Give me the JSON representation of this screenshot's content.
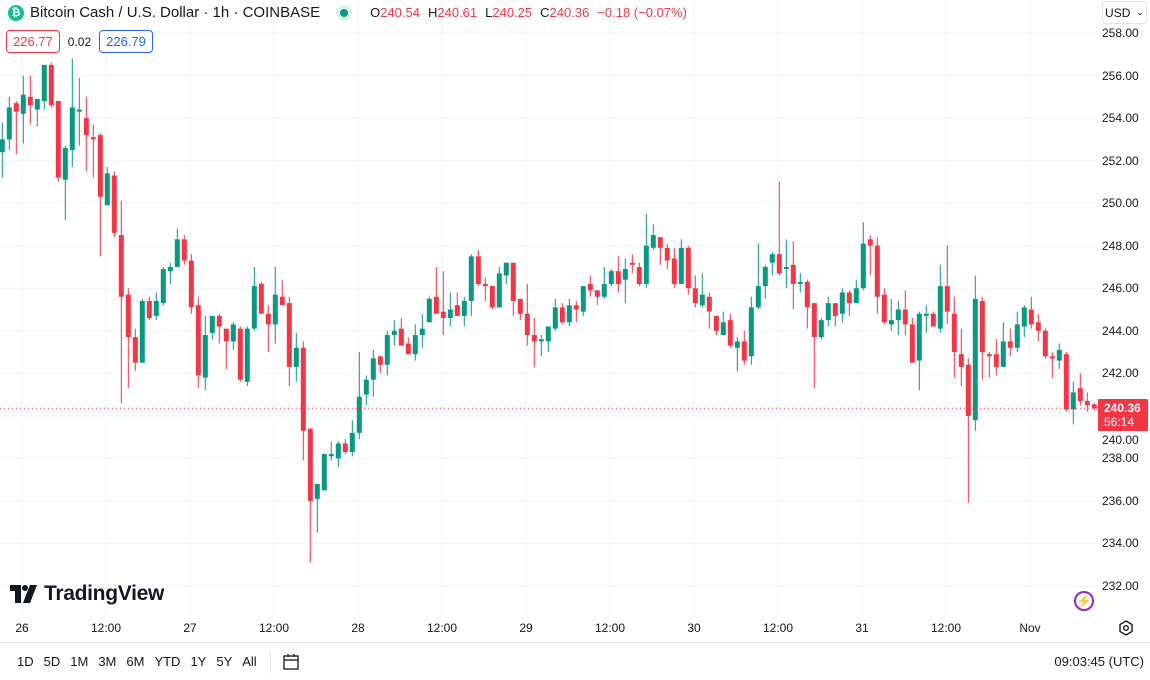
{
  "header": {
    "title": "Bitcoin Cash / U.S. Dollar · 1h · COINBASE",
    "coin_icon": "bitcoin-cash-icon",
    "ohlc": {
      "o_label": "O",
      "o": "240.54",
      "h_label": "H",
      "h": "240.61",
      "l_label": "L",
      "l": "240.25",
      "c_label": "C",
      "c": "240.36",
      "change": "−0.18 (−0.07%)"
    },
    "sell_price": "226.77",
    "spread": "0.02",
    "buy_price": "226.79"
  },
  "currency": "USD",
  "last_price": {
    "value": "240.36",
    "countdown": "56:14"
  },
  "logo_text": "TradingView",
  "colors": {
    "up": "#089981",
    "down": "#f23645",
    "grid": "#f0f3fa"
  },
  "time_labels": [
    "26",
    "12:00",
    "27",
    "12:00",
    "28",
    "12:00",
    "29",
    "12:00",
    "30",
    "12:00",
    "31",
    "12:00",
    "Nov"
  ],
  "range_buttons": [
    "1D",
    "5D",
    "1M",
    "3M",
    "6M",
    "YTD",
    "1Y",
    "5Y",
    "All"
  ],
  "clock": "09:03:45 (UTC)",
  "chart_data": {
    "type": "candlestick",
    "title": "Bitcoin Cash / U.S. Dollar · 1h · COINBASE",
    "interval": "1h",
    "ylim": [
      232,
      258
    ],
    "y_ticks": [
      "258.00",
      "256.00",
      "254.00",
      "252.00",
      "250.00",
      "248.00",
      "246.00",
      "244.00",
      "242.00",
      "240.00",
      "238.00",
      "236.00",
      "234.00",
      "232.00"
    ],
    "last_price": 240.36,
    "ohlc_fields": [
      "open",
      "high",
      "low",
      "close"
    ],
    "candles": [
      [
        252.4,
        253.8,
        251.2,
        253.0
      ],
      [
        253.0,
        255.0,
        252.5,
        254.5
      ],
      [
        254.7,
        254.8,
        252.3,
        254.3
      ],
      [
        254.2,
        256.0,
        252.8,
        255.1
      ],
      [
        255.0,
        256.0,
        253.7,
        254.6
      ],
      [
        254.4,
        254.9,
        253.6,
        254.9
      ],
      [
        254.8,
        256.5,
        254.4,
        256.5
      ],
      [
        256.5,
        256.6,
        254.5,
        254.6
      ],
      [
        254.8,
        254.8,
        251.0,
        251.2
      ],
      [
        251.1,
        252.7,
        249.2,
        252.6
      ],
      [
        252.5,
        256.8,
        251.7,
        254.5
      ],
      [
        254.3,
        255.9,
        252.7,
        254.4
      ],
      [
        254.0,
        255.0,
        251.5,
        253.2
      ],
      [
        253.1,
        253.7,
        251.2,
        253.0
      ],
      [
        253.2,
        253.3,
        247.5,
        250.3
      ],
      [
        249.9,
        251.7,
        249.9,
        251.4
      ],
      [
        251.3,
        251.5,
        248.4,
        248.6
      ],
      [
        248.5,
        250.1,
        240.6,
        245.6
      ],
      [
        245.7,
        246.0,
        241.3,
        243.7
      ],
      [
        243.7,
        244.1,
        242.1,
        242.5
      ],
      [
        242.5,
        245.5,
        242.5,
        245.4
      ],
      [
        245.4,
        245.6,
        244.5,
        244.6
      ],
      [
        244.7,
        245.8,
        244.5,
        245.4
      ],
      [
        245.3,
        247.0,
        245.2,
        246.9
      ],
      [
        246.8,
        247.2,
        246.2,
        247.0
      ],
      [
        247.0,
        248.8,
        247.0,
        248.3
      ],
      [
        248.3,
        248.5,
        247.1,
        247.3
      ],
      [
        247.3,
        247.6,
        244.8,
        245.1
      ],
      [
        245.2,
        245.6,
        241.3,
        241.9
      ],
      [
        241.8,
        244.7,
        241.2,
        243.8
      ],
      [
        243.9,
        244.7,
        243.6,
        244.7
      ],
      [
        244.7,
        244.8,
        243.4,
        244.2
      ],
      [
        244.1,
        244.1,
        242.2,
        243.5
      ],
      [
        243.5,
        244.4,
        243.1,
        244.3
      ],
      [
        244.1,
        244.2,
        241.6,
        241.7
      ],
      [
        241.6,
        244.2,
        241.4,
        244.1
      ],
      [
        244.1,
        247.0,
        244.0,
        246.1
      ],
      [
        246.2,
        246.3,
        244.8,
        244.8
      ],
      [
        244.8,
        245.2,
        243.0,
        244.3
      ],
      [
        244.3,
        247.0,
        243.4,
        245.7
      ],
      [
        245.6,
        246.4,
        245.2,
        245.2
      ],
      [
        245.3,
        245.6,
        241.4,
        242.3
      ],
      [
        242.3,
        243.9,
        241.6,
        243.2
      ],
      [
        243.2,
        243.5,
        237.9,
        239.3
      ],
      [
        239.4,
        239.4,
        233.1,
        236.0
      ],
      [
        236.1,
        236.8,
        234.5,
        236.8
      ],
      [
        236.5,
        238.2,
        236.5,
        238.2
      ],
      [
        238.1,
        238.8,
        237.9,
        238.2
      ],
      [
        238.0,
        238.8,
        237.6,
        238.7
      ],
      [
        238.7,
        238.9,
        238.2,
        238.3
      ],
      [
        238.3,
        239.8,
        238.1,
        239.2
      ],
      [
        239.2,
        243.0,
        238.9,
        240.9
      ],
      [
        241.0,
        241.9,
        240.5,
        241.7
      ],
      [
        241.7,
        243.1,
        240.9,
        242.7
      ],
      [
        242.8,
        242.8,
        242.0,
        242.4
      ],
      [
        242.4,
        244.0,
        241.9,
        243.8
      ],
      [
        243.8,
        244.5,
        243.3,
        244.0
      ],
      [
        244.1,
        244.6,
        243.3,
        243.3
      ],
      [
        243.4,
        243.7,
        242.9,
        242.9
      ],
      [
        242.9,
        244.3,
        242.6,
        243.8
      ],
      [
        243.8,
        244.8,
        243.2,
        244.1
      ],
      [
        244.4,
        245.6,
        244.4,
        245.5
      ],
      [
        245.6,
        247.0,
        244.8,
        244.8
      ],
      [
        244.9,
        246.8,
        243.8,
        244.6
      ],
      [
        244.6,
        245.8,
        244.2,
        245.0
      ],
      [
        245.2,
        245.8,
        244.7,
        244.7
      ],
      [
        244.7,
        245.6,
        244.2,
        245.4
      ],
      [
        245.4,
        247.6,
        244.7,
        247.5
      ],
      [
        247.5,
        247.8,
        246.1,
        246.2
      ],
      [
        246.2,
        246.5,
        245.4,
        246.1
      ],
      [
        246.1,
        246.1,
        245.0,
        245.1
      ],
      [
        245.1,
        247.0,
        245.1,
        246.7
      ],
      [
        246.6,
        247.2,
        246.2,
        247.2
      ],
      [
        247.2,
        247.2,
        244.7,
        245.4
      ],
      [
        245.5,
        245.5,
        244.5,
        244.8
      ],
      [
        244.8,
        246.2,
        243.3,
        243.8
      ],
      [
        243.8,
        244.6,
        242.3,
        243.5
      ],
      [
        243.5,
        243.8,
        242.8,
        243.6
      ],
      [
        243.5,
        244.2,
        243.0,
        244.2
      ],
      [
        244.1,
        245.5,
        244.0,
        245.1
      ],
      [
        245.1,
        245.3,
        244.3,
        244.4
      ],
      [
        244.4,
        245.5,
        244.2,
        245.2
      ],
      [
        245.2,
        245.4,
        244.4,
        245.0
      ],
      [
        244.9,
        246.1,
        244.7,
        246.1
      ],
      [
        246.2,
        246.6,
        245.6,
        245.9
      ],
      [
        245.9,
        245.9,
        245.2,
        245.6
      ],
      [
        245.6,
        247.0,
        245.5,
        246.2
      ],
      [
        246.2,
        246.9,
        246.1,
        246.8
      ],
      [
        246.8,
        247.5,
        245.8,
        246.2
      ],
      [
        246.4,
        247.4,
        245.3,
        246.9
      ],
      [
        247.2,
        247.6,
        246.7,
        247.1
      ],
      [
        247.0,
        247.2,
        246.1,
        246.2
      ],
      [
        246.2,
        249.5,
        246.0,
        248.0
      ],
      [
        247.9,
        249.0,
        247.8,
        248.5
      ],
      [
        248.4,
        248.4,
        247.1,
        247.9
      ],
      [
        247.9,
        248.1,
        246.9,
        247.3
      ],
      [
        247.4,
        247.9,
        246.0,
        246.2
      ],
      [
        246.2,
        248.3,
        246.2,
        247.9
      ],
      [
        247.9,
        248.0,
        245.7,
        246.0
      ],
      [
        246.0,
        246.6,
        245.1,
        245.3
      ],
      [
        245.2,
        246.7,
        245.1,
        245.7
      ],
      [
        245.6,
        245.8,
        244.1,
        244.9
      ],
      [
        244.7,
        244.7,
        243.8,
        244.0
      ],
      [
        243.8,
        244.9,
        243.8,
        244.4
      ],
      [
        244.5,
        244.8,
        243.2,
        243.3
      ],
      [
        243.2,
        243.7,
        242.1,
        243.5
      ],
      [
        243.5,
        244.0,
        242.4,
        242.6
      ],
      [
        242.8,
        245.6,
        242.4,
        245.1
      ],
      [
        245.1,
        248.1,
        245.0,
        246.1
      ],
      [
        246.1,
        247.1,
        245.5,
        247.0
      ],
      [
        247.2,
        247.7,
        246.6,
        247.6
      ],
      [
        247.6,
        251.0,
        246.6,
        246.7
      ],
      [
        246.9,
        248.3,
        246.0,
        247.0
      ],
      [
        247.1,
        248.2,
        245.0,
        246.2
      ],
      [
        246.2,
        246.7,
        245.8,
        246.3
      ],
      [
        246.3,
        246.4,
        244.1,
        245.1
      ],
      [
        245.3,
        245.3,
        241.3,
        243.7
      ],
      [
        243.7,
        244.6,
        243.6,
        244.5
      ],
      [
        244.5,
        245.6,
        244.2,
        245.3
      ],
      [
        245.3,
        245.3,
        244.2,
        244.7
      ],
      [
        244.8,
        246.0,
        244.4,
        245.8
      ],
      [
        245.8,
        245.9,
        244.7,
        245.3
      ],
      [
        245.3,
        246.4,
        245.3,
        246.0
      ],
      [
        246.0,
        249.1,
        245.9,
        248.1
      ],
      [
        248.3,
        248.5,
        246.6,
        248.0
      ],
      [
        248.0,
        248.4,
        244.8,
        245.6
      ],
      [
        245.7,
        246.0,
        244.3,
        244.4
      ],
      [
        244.3,
        245.5,
        244.0,
        244.5
      ],
      [
        244.5,
        245.4,
        243.8,
        245.0
      ],
      [
        245.0,
        245.9,
        243.8,
        244.3
      ],
      [
        244.3,
        244.6,
        242.5,
        242.5
      ],
      [
        242.6,
        244.9,
        241.2,
        244.8
      ],
      [
        244.7,
        245.2,
        243.9,
        244.8
      ],
      [
        244.8,
        244.9,
        244.2,
        244.2
      ],
      [
        244.1,
        247.1,
        243.9,
        246.1
      ],
      [
        246.1,
        248.0,
        244.3,
        244.9
      ],
      [
        244.8,
        245.6,
        241.8,
        243.0
      ],
      [
        242.9,
        244.1,
        241.4,
        242.3
      ],
      [
        242.4,
        242.7,
        235.9,
        240.0
      ],
      [
        239.8,
        246.6,
        239.3,
        245.5
      ],
      [
        245.4,
        245.6,
        241.7,
        243.0
      ],
      [
        242.9,
        243.0,
        241.8,
        242.8
      ],
      [
        242.9,
        243.6,
        241.9,
        242.3
      ],
      [
        242.3,
        244.4,
        242.3,
        243.5
      ],
      [
        243.5,
        244.1,
        242.8,
        243.2
      ],
      [
        243.2,
        244.9,
        243.0,
        244.3
      ],
      [
        244.2,
        245.2,
        243.7,
        245.1
      ],
      [
        245.0,
        245.6,
        244.1,
        244.3
      ],
      [
        244.4,
        244.8,
        243.5,
        244.0
      ],
      [
        244.0,
        244.1,
        242.7,
        242.8
      ],
      [
        242.8,
        243.0,
        241.8,
        242.7
      ],
      [
        242.6,
        243.4,
        242.2,
        243.1
      ],
      [
        242.9,
        243.0,
        240.2,
        240.3
      ],
      [
        240.3,
        241.6,
        239.6,
        241.1
      ],
      [
        241.3,
        242.0,
        240.5,
        240.7
      ],
      [
        240.7,
        241.1,
        240.2,
        240.5
      ],
      [
        240.54,
        240.61,
        240.25,
        240.36
      ]
    ]
  }
}
